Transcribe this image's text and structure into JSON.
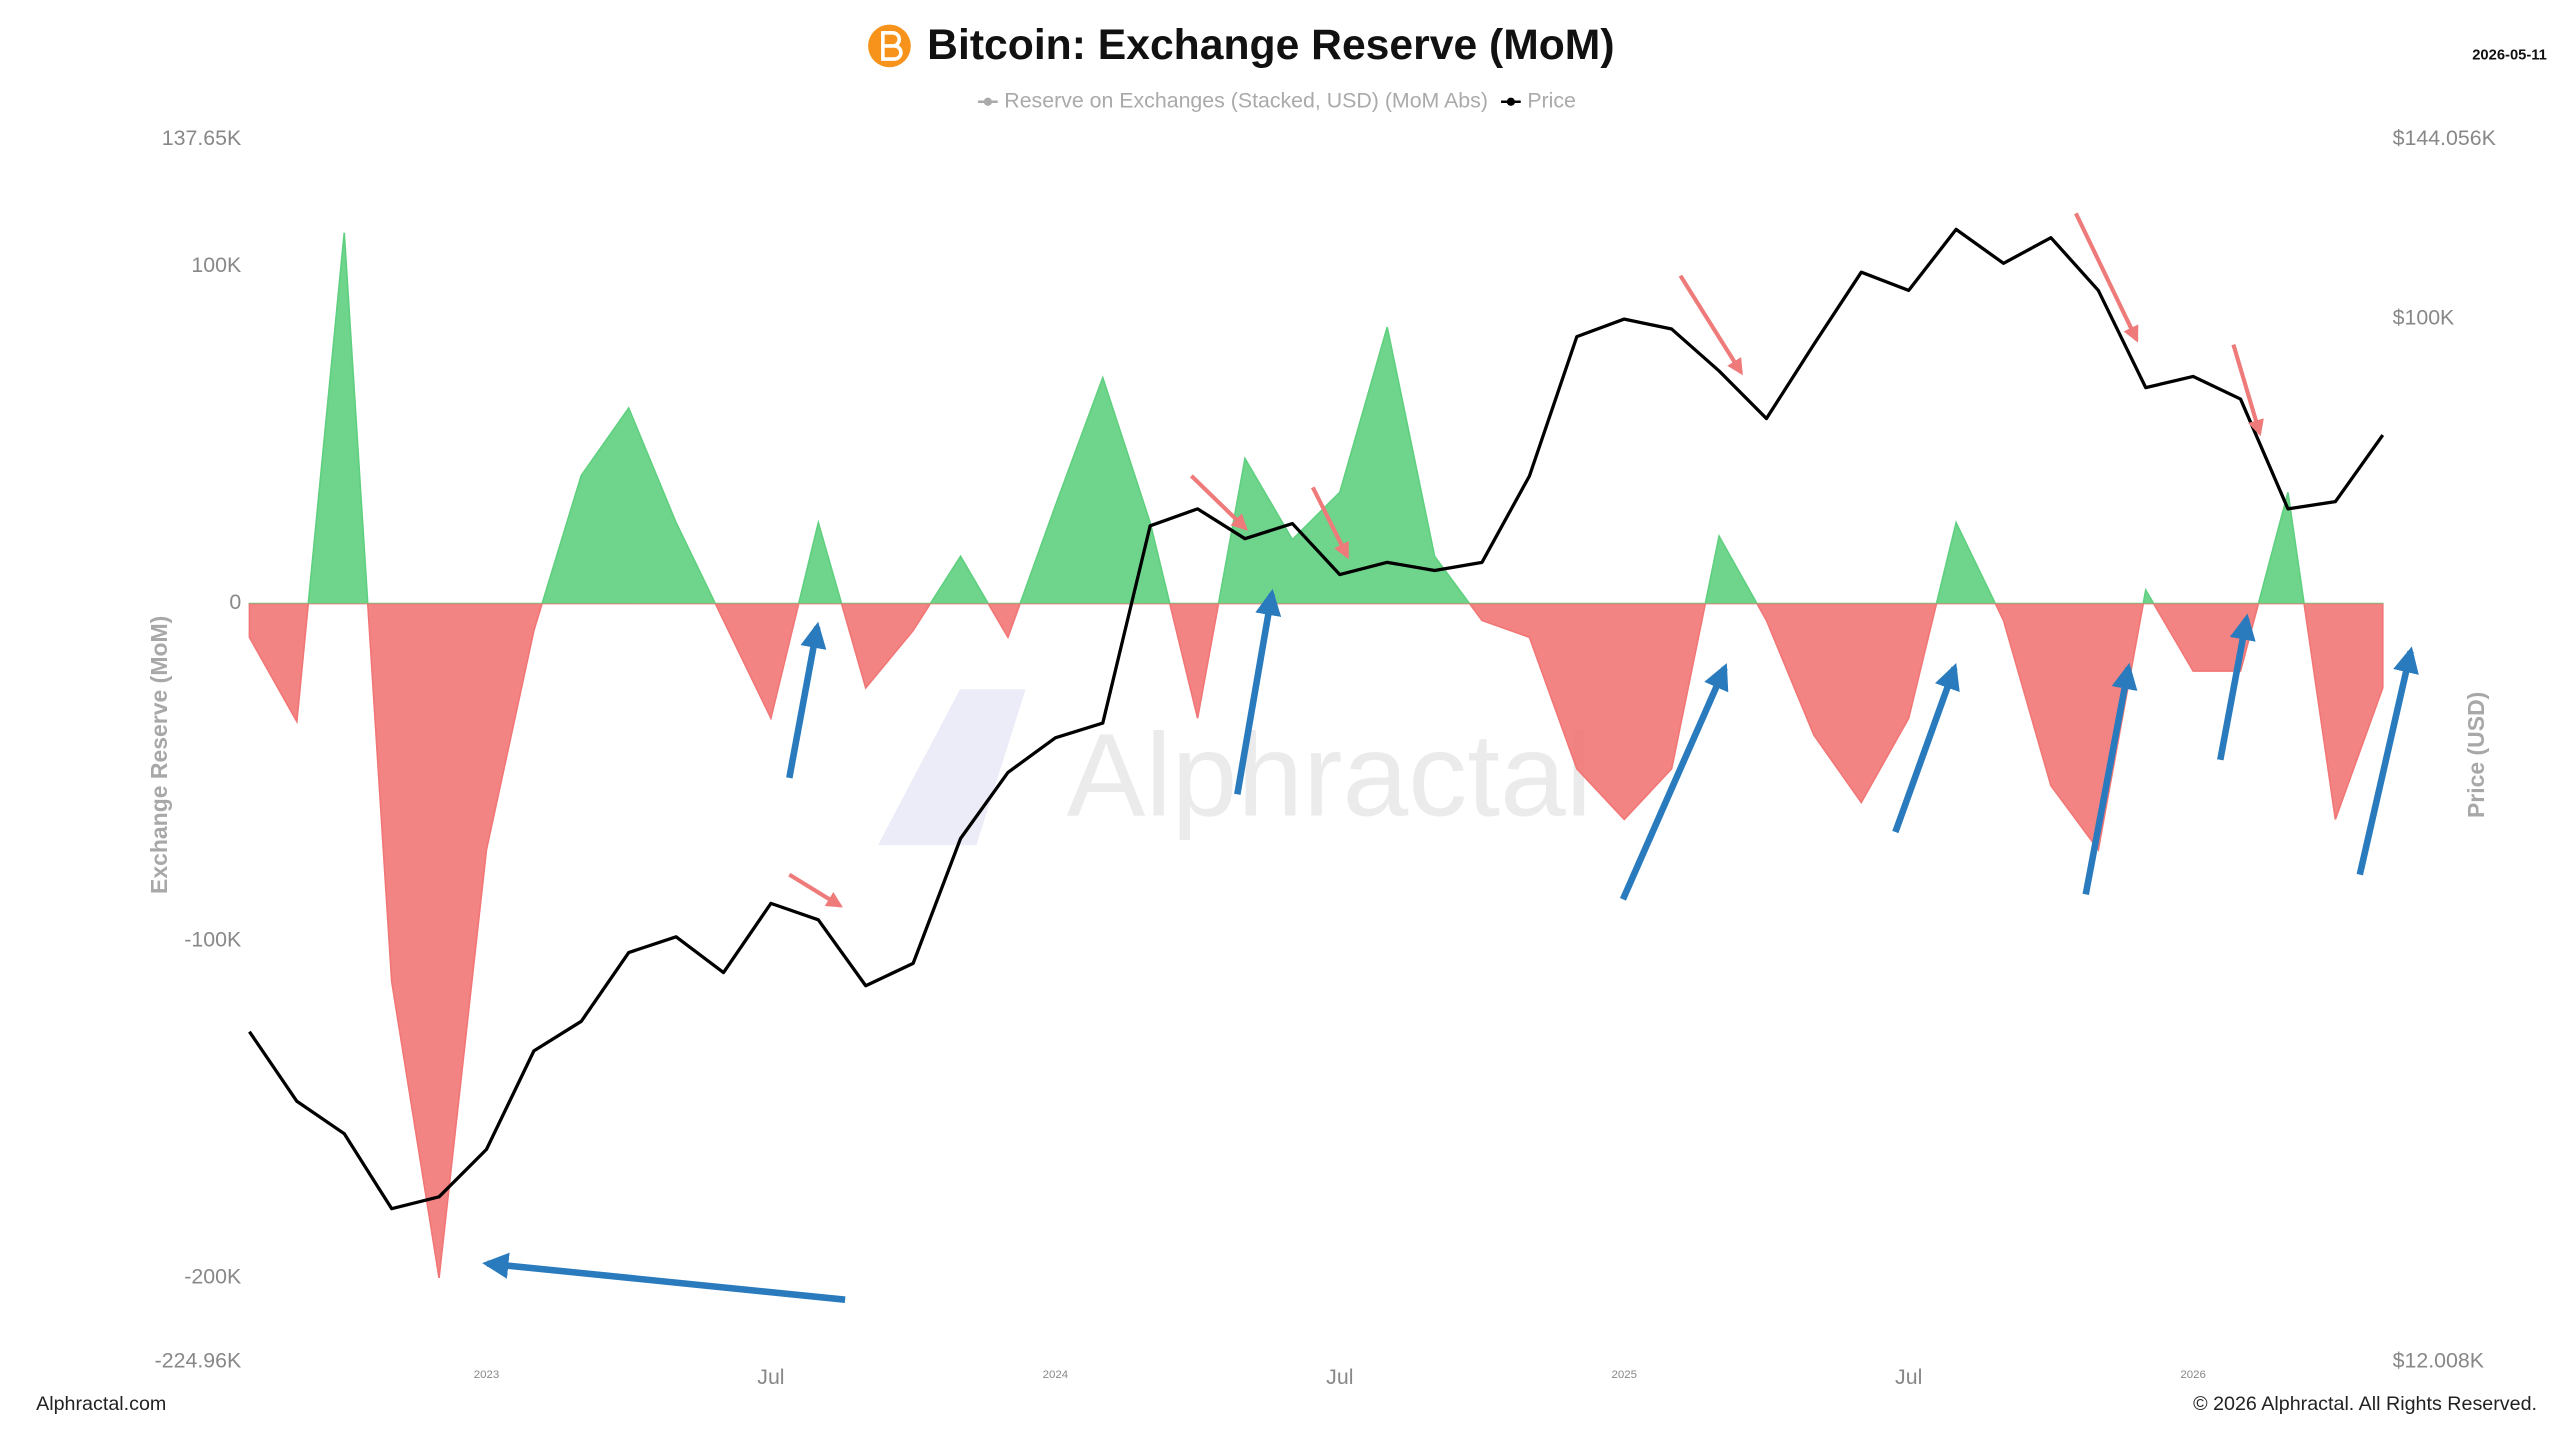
{
  "chart_data": {
    "type": "combo",
    "title": "Bitcoin: Exchange Reserve (MoM)",
    "date": "2026-05-11",
    "watermark": "Alphractal",
    "source": "Alphractal.com",
    "copyright": "© 2026 Alphractal. All Rights Reserved.",
    "y_label": "Exchange Reserve (MoM)",
    "y2_label": "Price (USD)",
    "y2scale": "log",
    "x": [
      "2022-08",
      "2022-09",
      "2022-10",
      "2022-11",
      "2022-12",
      "2023-01",
      "2023-02",
      "2023-03",
      "2023-04",
      "2023-05",
      "2023-06",
      "2023-07",
      "2023-08",
      "2023-09",
      "2023-10",
      "2023-11",
      "2023-12",
      "2024-01",
      "2024-02",
      "2024-03",
      "2024-04",
      "2024-05",
      "2024-06",
      "2024-07",
      "2024-08",
      "2024-09",
      "2024-10",
      "2024-11",
      "2024-12",
      "2025-01",
      "2025-02",
      "2025-03",
      "2025-04",
      "2025-05",
      "2025-06",
      "2025-07",
      "2025-08",
      "2025-09",
      "2025-10",
      "2025-11",
      "2025-12",
      "2026-01",
      "2026-02",
      "2026-03",
      "2026-04",
      "2026-05"
    ],
    "xticks": [
      {
        "value": "2023-01",
        "label": "2023"
      },
      {
        "value": "2023-07",
        "label": "Jul"
      },
      {
        "value": "2024-01",
        "label": "2024"
      },
      {
        "value": "2024-07",
        "label": "Jul"
      },
      {
        "value": "2025-01",
        "label": "2025"
      },
      {
        "value": "2025-07",
        "label": "Jul"
      },
      {
        "value": "2026-01",
        "label": "2026"
      }
    ],
    "ylim": [
      -224960,
      137650
    ],
    "yticks": [
      {
        "value": 137650,
        "label": "137.65K"
      },
      {
        "value": 100000,
        "label": "100K"
      },
      0,
      {
        "value": -100000,
        "label": "-100K"
      },
      {
        "value": -200000,
        "label": "-200K"
      },
      {
        "value": -224960,
        "label": "-224.96K"
      }
    ],
    "y2lim": [
      12008,
      144056
    ],
    "y2ticks": [
      {
        "value": 144056,
        "label": "$144.056K"
      },
      {
        "value": 100000,
        "label": "$100K"
      },
      {
        "value": 12008,
        "label": "$12.008K"
      }
    ],
    "series": [
      {
        "name": "Reserve on Exchanges (Stacked, USD) (MoM Abs)",
        "type": "area",
        "color": "#5fd07f",
        "negative_color": "#f27676",
        "legend_color": "#aaaaaa",
        "values": [
          -10000,
          -35000,
          110000,
          -112000,
          -200000,
          -73000,
          -8000,
          38000,
          58000,
          24000,
          -5000,
          -34000,
          24000,
          -25000,
          -8000,
          14000,
          -10000,
          29000,
          67000,
          24000,
          -34000,
          43000,
          19000,
          33000,
          82000,
          14000,
          -5000,
          -10000,
          -49000,
          -64000,
          -49000,
          20000,
          -5000,
          -39000,
          -59000,
          -34000,
          24000,
          -5000,
          -54000,
          -73000,
          4000,
          -20000,
          -20000,
          33000,
          -64000,
          -25000
        ]
      },
      {
        "name": "Price",
        "type": "line",
        "axis": "y2",
        "color": "#000000",
        "values": [
          23500,
          20400,
          19100,
          16400,
          16800,
          18500,
          22600,
          24000,
          27600,
          28500,
          26500,
          30500,
          29500,
          25800,
          27000,
          34800,
          39800,
          42700,
          44000,
          65700,
          68000,
          64000,
          66000,
          59500,
          61000,
          60000,
          61000,
          72700,
          96500,
          100000,
          98000,
          90000,
          81700,
          95000,
          110000,
          106000,
          120000,
          112000,
          118000,
          106000,
          87000,
          89000,
          85000,
          68000,
          69000,
          79000
        ]
      }
    ]
  }
}
